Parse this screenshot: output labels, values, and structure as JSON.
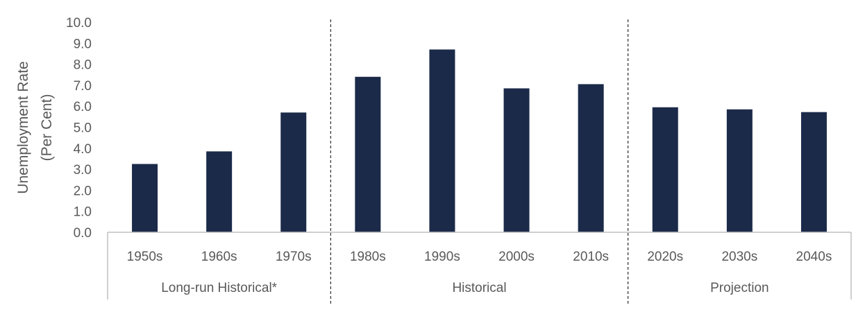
{
  "chart_data": {
    "type": "bar",
    "ylabel_lines": [
      "Unemployment Rate",
      "(Per Cent)"
    ],
    "ylim": [
      0,
      10
    ],
    "ytick_step": 1,
    "yticks": [
      "0.0",
      "1.0",
      "2.0",
      "3.0",
      "4.0",
      "5.0",
      "6.0",
      "7.0",
      "8.0",
      "9.0",
      "10.0"
    ],
    "categories": [
      "1950s",
      "1960s",
      "1970s",
      "1980s",
      "1990s",
      "2000s",
      "2010s",
      "2020s",
      "2030s",
      "2040s"
    ],
    "values": [
      3.25,
      3.85,
      5.7,
      7.4,
      8.7,
      6.85,
      7.05,
      5.95,
      5.85,
      5.72
    ],
    "groups": [
      {
        "label": "Long-run Historical*",
        "categories": [
          "1950s",
          "1960s",
          "1970s"
        ]
      },
      {
        "label": "Historical",
        "categories": [
          "1980s",
          "1990s",
          "2000s",
          "2010s"
        ]
      },
      {
        "label": "Projection",
        "categories": [
          "2020s",
          "2030s",
          "2040s"
        ]
      }
    ],
    "bar_color": "#1b2a49",
    "grid": false,
    "legend": "none"
  }
}
